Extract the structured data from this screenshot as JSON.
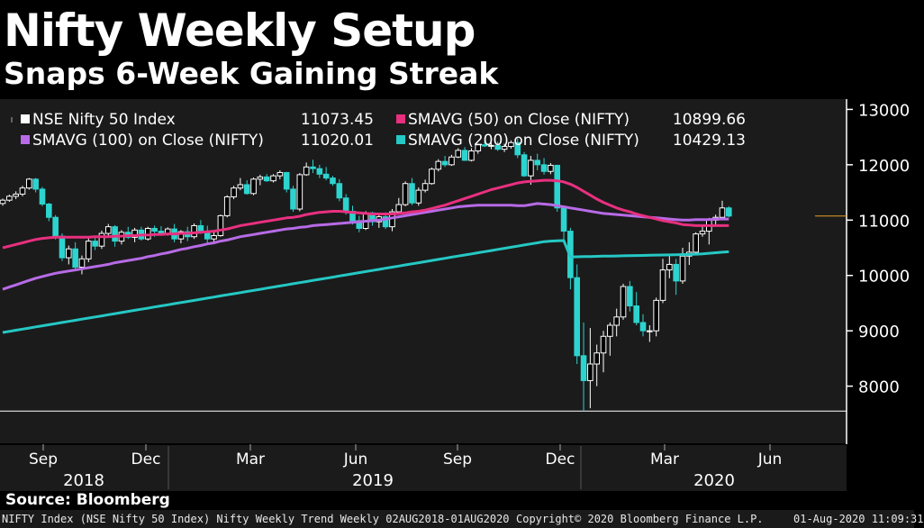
{
  "header": {
    "title": "Nifty Weekly Setup",
    "subtitle": "Snaps 6-Week Gaining Streak"
  },
  "source": "Source: Bloomberg",
  "footer": {
    "left": "NIFTY Index (NSE Nifty 50 Index) Nifty Weekly Trend  Weekly 02AUG2018-01AUG2020",
    "center": "Copyright© 2020 Bloomberg Finance L.P.",
    "right": "01-Aug-2020 11:09:31"
  },
  "colors": {
    "background": "#000000",
    "plot_background": "#1b1b1b",
    "candle_up": "#ffffff",
    "candle_down": "#2dd4cf",
    "sma50": "#e8307f",
    "sma100": "#b76be6",
    "sma200": "#25c8c4"
  },
  "chart_data": {
    "type": "candlestick",
    "title": "Nifty Weekly Setup",
    "subtitle": "Snaps 6-Week Gaining Streak",
    "ylim": [
      7000,
      13200
    ],
    "y_ticks": [
      8000,
      9000,
      10000,
      11000,
      12000,
      13000
    ],
    "x_month_labels": [
      "Sep",
      "Dec",
      "Mar",
      "Jun",
      "Sep",
      "Dec",
      "Mar",
      "Jun"
    ],
    "x_year_labels": [
      "2018",
      "2019",
      "2020"
    ],
    "legend_position": "top-left",
    "legend": [
      {
        "label": "NSE Nifty 50 Index",
        "value": "11073.45",
        "color": "#ffffff"
      },
      {
        "label": "SMAVG (50)  on Close (NIFTY)",
        "value": "10899.66",
        "color": "#e8307f"
      },
      {
        "label": "SMAVG (100)  on Close (NIFTY)",
        "value": "11020.01",
        "color": "#b76be6"
      },
      {
        "label": "SMAVG (200)  on Close (NIFTY)",
        "value": "10429.13",
        "color": "#25c8c4"
      }
    ],
    "last_price": 11073.45,
    "reference_line": 7550,
    "candles": [
      [
        11300,
        11390,
        11260,
        11360
      ],
      [
        11360,
        11460,
        11330,
        11430
      ],
      [
        11430,
        11520,
        11380,
        11470
      ],
      [
        11470,
        11620,
        11430,
        11580
      ],
      [
        11580,
        11760,
        11550,
        11740
      ],
      [
        11740,
        11760,
        11500,
        11560
      ],
      [
        11560,
        11600,
        11250,
        11290
      ],
      [
        11290,
        11310,
        10980,
        11050
      ],
      [
        11050,
        11090,
        10650,
        10710
      ],
      [
        10710,
        10760,
        10260,
        10320
      ],
      [
        10320,
        10540,
        10200,
        10480
      ],
      [
        10480,
        10600,
        10080,
        10150
      ],
      [
        10150,
        10360,
        10020,
        10300
      ],
      [
        10300,
        10680,
        10240,
        10620
      ],
      [
        10620,
        10720,
        10460,
        10530
      ],
      [
        10530,
        10810,
        10480,
        10760
      ],
      [
        10760,
        10930,
        10690,
        10880
      ],
      [
        10880,
        10910,
        10520,
        10620
      ],
      [
        10620,
        10820,
        10560,
        10780
      ],
      [
        10780,
        10880,
        10660,
        10690
      ],
      [
        10690,
        10860,
        10600,
        10820
      ],
      [
        10820,
        10880,
        10630,
        10660
      ],
      [
        10660,
        10880,
        10630,
        10850
      ],
      [
        10850,
        10900,
        10700,
        10800
      ],
      [
        10800,
        10890,
        10720,
        10760
      ],
      [
        10760,
        10870,
        10720,
        10840
      ],
      [
        10840,
        10930,
        10600,
        10660
      ],
      [
        10660,
        10820,
        10580,
        10790
      ],
      [
        10790,
        10880,
        10620,
        10700
      ],
      [
        10700,
        10940,
        10660,
        10900
      ],
      [
        10900,
        11000,
        10750,
        10800
      ],
      [
        10800,
        10900,
        10590,
        10660
      ],
      [
        10660,
        10820,
        10600,
        10720
      ],
      [
        10720,
        11100,
        10700,
        11080
      ],
      [
        11080,
        11450,
        11050,
        11420
      ],
      [
        11420,
        11620,
        11380,
        11580
      ],
      [
        11580,
        11760,
        11540,
        11640
      ],
      [
        11640,
        11720,
        11460,
        11480
      ],
      [
        11480,
        11770,
        11450,
        11740
      ],
      [
        11740,
        11820,
        11630,
        11780
      ],
      [
        11780,
        11830,
        11690,
        11710
      ],
      [
        11710,
        11830,
        11680,
        11800
      ],
      [
        11800,
        11900,
        11740,
        11860
      ],
      [
        11860,
        11870,
        11500,
        11560
      ],
      [
        11560,
        11620,
        11150,
        11200
      ],
      [
        11200,
        11850,
        11160,
        11820
      ],
      [
        11820,
        12040,
        11800,
        11960
      ],
      [
        11960,
        12090,
        11850,
        11930
      ],
      [
        11930,
        12000,
        11760,
        11830
      ],
      [
        11830,
        11960,
        11720,
        11760
      ],
      [
        11760,
        11800,
        11620,
        11660
      ],
      [
        11660,
        11740,
        11340,
        11400
      ],
      [
        11400,
        11470,
        11100,
        11160
      ],
      [
        11160,
        11260,
        10920,
        10990
      ],
      [
        10990,
        11080,
        10780,
        10850
      ],
      [
        10850,
        11160,
        10820,
        11130
      ],
      [
        11130,
        11150,
        10900,
        10970
      ],
      [
        10970,
        11100,
        10860,
        11060
      ],
      [
        11060,
        11140,
        10840,
        10880
      ],
      [
        10880,
        11200,
        10800,
        11150
      ],
      [
        11150,
        11400,
        11100,
        11280
      ],
      [
        11280,
        11700,
        11250,
        11660
      ],
      [
        11660,
        11760,
        11270,
        11310
      ],
      [
        11310,
        11590,
        11260,
        11540
      ],
      [
        11540,
        11730,
        11500,
        11660
      ],
      [
        11660,
        11950,
        11640,
        11920
      ],
      [
        11920,
        12100,
        11880,
        12060
      ],
      [
        12060,
        12160,
        11960,
        12000
      ],
      [
        12000,
        12180,
        11980,
        12140
      ],
      [
        12140,
        12300,
        12120,
        12260
      ],
      [
        12260,
        12320,
        12070,
        12080
      ],
      [
        12080,
        12300,
        12060,
        12250
      ],
      [
        12250,
        12380,
        12200,
        12360
      ],
      [
        12360,
        12430,
        12320,
        12340
      ],
      [
        12340,
        12400,
        12280,
        12350
      ],
      [
        12350,
        12420,
        12250,
        12280
      ],
      [
        12280,
        12380,
        12230,
        12330
      ],
      [
        12330,
        12440,
        12290,
        12400
      ],
      [
        12400,
        12480,
        12120,
        12180
      ],
      [
        12180,
        12230,
        11780,
        11800
      ],
      [
        11800,
        12160,
        11640,
        12080
      ],
      [
        12080,
        12200,
        11900,
        12000
      ],
      [
        12000,
        12120,
        11820,
        11880
      ],
      [
        11880,
        12030,
        11830,
        11990
      ],
      [
        11990,
        12000,
        11150,
        11220
      ],
      [
        11220,
        11250,
        10600,
        10800
      ],
      [
        10800,
        10860,
        9750,
        9960
      ],
      [
        9960,
        10200,
        8400,
        8550
      ],
      [
        8550,
        9150,
        7550,
        8100
      ],
      [
        8100,
        9050,
        7600,
        8400
      ],
      [
        8400,
        8750,
        8000,
        8600
      ],
      [
        8600,
        9000,
        8250,
        8900
      ],
      [
        8900,
        9150,
        8550,
        9100
      ],
      [
        9100,
        9400,
        8900,
        9250
      ],
      [
        9250,
        9850,
        9200,
        9800
      ],
      [
        9800,
        9900,
        9350,
        9450
      ],
      [
        9450,
        9700,
        9100,
        9150
      ],
      [
        9150,
        9300,
        8900,
        9000
      ],
      [
        9000,
        9100,
        8800,
        9000
      ],
      [
        9000,
        9600,
        8900,
        9550
      ],
      [
        9550,
        10300,
        9500,
        10100
      ],
      [
        10100,
        10380,
        9950,
        10200
      ],
      [
        10200,
        10300,
        9650,
        9900
      ],
      [
        9900,
        10500,
        9850,
        10350
      ],
      [
        10350,
        10600,
        10190,
        10420
      ],
      [
        10420,
        10780,
        10400,
        10750
      ],
      [
        10750,
        10900,
        10700,
        10800
      ],
      [
        10800,
        11040,
        10560,
        11000
      ],
      [
        11000,
        11100,
        10900,
        11050
      ],
      [
        11050,
        11350,
        11040,
        11220
      ],
      [
        11220,
        11250,
        11050,
        11073
      ]
    ],
    "sma50": [
      10500,
      10530,
      10560,
      10590,
      10620,
      10650,
      10670,
      10680,
      10690,
      10690,
      10690,
      10690,
      10690,
      10690,
      10700,
      10700,
      10700,
      10710,
      10710,
      10720,
      10720,
      10730,
      10730,
      10740,
      10740,
      10750,
      10750,
      10760,
      10760,
      10770,
      10780,
      10790,
      10800,
      10820,
      10840,
      10870,
      10900,
      10920,
      10940,
      10960,
      10980,
      11000,
      11020,
      11040,
      11050,
      11070,
      11100,
      11120,
      11140,
      11150,
      11160,
      11160,
      11150,
      11140,
      11130,
      11120,
      11110,
      11110,
      11110,
      11110,
      11120,
      11130,
      11150,
      11160,
      11180,
      11210,
      11240,
      11270,
      11310,
      11350,
      11390,
      11430,
      11470,
      11510,
      11550,
      11580,
      11610,
      11640,
      11670,
      11690,
      11700,
      11710,
      11720,
      11720,
      11710,
      11690,
      11650,
      11590,
      11520,
      11450,
      11380,
      11320,
      11270,
      11220,
      11180,
      11150,
      11110,
      11080,
      11050,
      11020,
      10990,
      10970,
      10950,
      10920,
      10910,
      10900,
      10900,
      10900,
      10900,
      10900,
      10899.66
    ],
    "sma100": [
      9750,
      9790,
      9830,
      9870,
      9910,
      9950,
      9980,
      10010,
      10040,
      10060,
      10080,
      10100,
      10120,
      10140,
      10160,
      10180,
      10200,
      10230,
      10250,
      10270,
      10290,
      10310,
      10340,
      10360,
      10390,
      10410,
      10440,
      10470,
      10490,
      10520,
      10540,
      10570,
      10590,
      10620,
      10640,
      10670,
      10700,
      10720,
      10740,
      10760,
      10780,
      10800,
      10820,
      10840,
      10850,
      10870,
      10880,
      10900,
      10910,
      10920,
      10930,
      10940,
      10950,
      10960,
      10970,
      10980,
      10990,
      11000,
      11020,
      11040,
      11060,
      11080,
      11100,
      11120,
      11140,
      11160,
      11180,
      11200,
      11220,
      11240,
      11250,
      11260,
      11270,
      11270,
      11270,
      11270,
      11270,
      11270,
      11260,
      11260,
      11280,
      11300,
      11290,
      11280,
      11260,
      11240,
      11220,
      11200,
      11180,
      11160,
      11140,
      11120,
      11110,
      11100,
      11090,
      11080,
      11070,
      11060,
      11050,
      11040,
      11030,
      11020,
      11010,
      11000,
      11000,
      11010,
      11010,
      11010,
      11020,
      11020,
      11020.01
    ],
    "sma200": [
      8970,
      8990,
      9010,
      9030,
      9050,
      9070,
      9090,
      9110,
      9130,
      9150,
      9170,
      9190,
      9210,
      9230,
      9250,
      9270,
      9290,
      9310,
      9330,
      9350,
      9370,
      9390,
      9410,
      9430,
      9450,
      9470,
      9490,
      9510,
      9530,
      9550,
      9570,
      9590,
      9610,
      9630,
      9650,
      9670,
      9690,
      9710,
      9730,
      9750,
      9770,
      9790,
      9810,
      9830,
      9850,
      9870,
      9890,
      9910,
      9930,
      9950,
      9970,
      9990,
      10010,
      10030,
      10050,
      10070,
      10090,
      10110,
      10130,
      10150,
      10170,
      10190,
      10210,
      10230,
      10250,
      10270,
      10290,
      10310,
      10330,
      10350,
      10370,
      10390,
      10410,
      10430,
      10450,
      10470,
      10490,
      10510,
      10530,
      10550,
      10570,
      10590,
      10610,
      10620,
      10625,
      10630,
      10335,
      10338,
      10340,
      10342,
      10345,
      10348,
      10350,
      10352,
      10355,
      10358,
      10360,
      10362,
      10365,
      10368,
      10370,
      10372,
      10375,
      10378,
      10380,
      10385,
      10390,
      10400,
      10410,
      10420,
      10429.13
    ]
  }
}
